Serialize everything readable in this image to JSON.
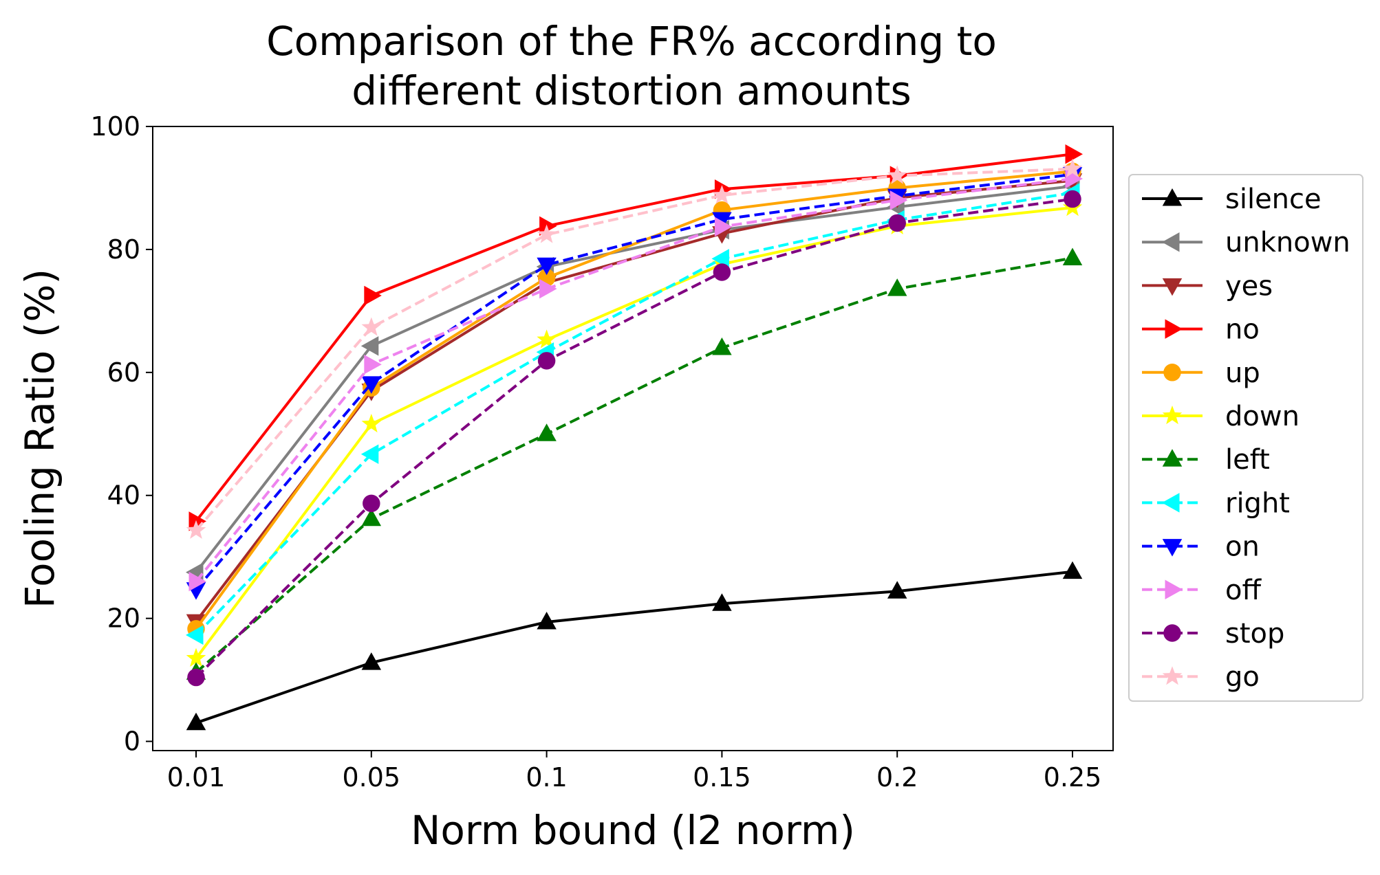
{
  "chart_data": {
    "type": "line",
    "title": "Comparison of the FR% according to different distortion amounts",
    "title_lines": [
      "Comparison of the FR% according to",
      "different distortion amounts"
    ],
    "xlabel": "Norm bound (l2 norm)",
    "ylabel": "Fooling Ratio (%)",
    "categories": [
      "0.01",
      "0.05",
      "0.1",
      "0.15",
      "0.2",
      "0.25"
    ],
    "ylim": [
      -1.5,
      100
    ],
    "yticks": [
      "0",
      "20",
      "40",
      "60",
      "80",
      "100"
    ],
    "grid": false,
    "legend_position": "right",
    "series": [
      {
        "name": "silence",
        "color": "#000000",
        "marker": "triangle-up",
        "dashed": false,
        "values": [
          3.0,
          12.8,
          19.4,
          22.4,
          24.4,
          27.6
        ]
      },
      {
        "name": "unknown",
        "color": "#808080",
        "marker": "triangle-left",
        "dashed": false,
        "values": [
          27.5,
          64.3,
          77.2,
          83.2,
          86.9,
          90.3
        ]
      },
      {
        "name": "yes",
        "color": "#a52a2a",
        "marker": "triangle-down",
        "dashed": false,
        "values": [
          19.5,
          57.0,
          74.6,
          82.6,
          88.4,
          91.2
        ]
      },
      {
        "name": "no",
        "color": "#ff0000",
        "marker": "triangle-right",
        "dashed": false,
        "values": [
          35.8,
          72.5,
          83.8,
          89.8,
          92.0,
          95.5
        ]
      },
      {
        "name": "up",
        "color": "#ffa500",
        "marker": "circle",
        "dashed": false,
        "values": [
          18.3,
          57.5,
          75.4,
          86.4,
          90.0,
          92.7
        ]
      },
      {
        "name": "down",
        "color": "#ffff00",
        "marker": "star",
        "dashed": false,
        "values": [
          13.5,
          51.6,
          65.3,
          77.6,
          83.8,
          86.8
        ]
      },
      {
        "name": "left",
        "color": "#008000",
        "marker": "triangle-up",
        "dashed": true,
        "values": [
          11.2,
          36.2,
          50.0,
          64.0,
          73.6,
          78.6
        ]
      },
      {
        "name": "right",
        "color": "#00ffff",
        "marker": "triangle-left",
        "dashed": true,
        "values": [
          17.3,
          46.7,
          63.3,
          78.5,
          84.8,
          89.2
        ]
      },
      {
        "name": "on",
        "color": "#0000ff",
        "marker": "triangle-down",
        "dashed": true,
        "values": [
          24.7,
          58.2,
          77.5,
          84.9,
          88.7,
          92.2
        ]
      },
      {
        "name": "off",
        "color": "#ee82ee",
        "marker": "triangle-right",
        "dashed": true,
        "values": [
          26.0,
          61.3,
          73.6,
          83.7,
          88.0,
          91.5
        ]
      },
      {
        "name": "stop",
        "color": "#800080",
        "marker": "circle",
        "dashed": true,
        "values": [
          10.4,
          38.7,
          61.9,
          76.3,
          84.3,
          88.2
        ]
      },
      {
        "name": "go",
        "color": "#ffc0cb",
        "marker": "star",
        "dashed": true,
        "values": [
          34.3,
          67.3,
          82.4,
          88.8,
          92.0,
          93.1
        ]
      }
    ]
  }
}
